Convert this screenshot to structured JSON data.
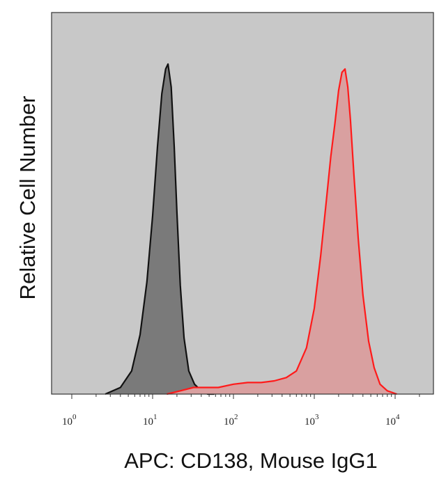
{
  "chart_data": {
    "type": "area",
    "title": "",
    "xlabel": "APC: CD138, Mouse IgG1",
    "ylabel": "Relative Cell Number",
    "x_scale": "log",
    "xlim": [
      1,
      30000
    ],
    "ylim": [
      0,
      1.0
    ],
    "grid": false,
    "legend": "none",
    "background": "#c8c8c8",
    "x_ticks": [
      {
        "base": "10",
        "exp": "0",
        "value": 1
      },
      {
        "base": "10",
        "exp": "1",
        "value": 10
      },
      {
        "base": "10",
        "exp": "2",
        "value": 100
      },
      {
        "base": "10",
        "exp": "3",
        "value": 1000
      },
      {
        "base": "10",
        "exp": "4",
        "value": 10000
      }
    ],
    "series": [
      {
        "color": "#111111",
        "fill": "#7a7a7a",
        "x": [
          2.6,
          4.0,
          5.5,
          7.0,
          8.5,
          10.0,
          11.5,
          13.0,
          14.5,
          15.5,
          17.0,
          18.5,
          20.0,
          22.0,
          24.5,
          28.0,
          33.0,
          40.0,
          48.0,
          58.0
        ],
        "y": [
          0.0,
          0.02,
          0.07,
          0.18,
          0.34,
          0.54,
          0.75,
          0.91,
          0.985,
          1.0,
          0.93,
          0.75,
          0.55,
          0.33,
          0.17,
          0.07,
          0.03,
          0.01,
          0.0,
          0.0
        ]
      },
      {
        "color": "#ff1a1a",
        "fill": "#d9a0a0",
        "x": [
          15,
          22,
          32,
          45,
          65,
          100,
          150,
          220,
          320,
          450,
          600,
          800,
          1000,
          1200,
          1400,
          1600,
          1800,
          2000,
          2200,
          2400,
          2600,
          2800,
          3100,
          3500,
          4000,
          4700,
          5500,
          6500,
          8000,
          10500
        ],
        "y": [
          0.0,
          0.01,
          0.02,
          0.02,
          0.02,
          0.03,
          0.035,
          0.035,
          0.04,
          0.05,
          0.07,
          0.14,
          0.26,
          0.42,
          0.58,
          0.72,
          0.82,
          0.92,
          0.975,
          0.985,
          0.93,
          0.83,
          0.66,
          0.47,
          0.3,
          0.16,
          0.08,
          0.03,
          0.01,
          0.0
        ]
      }
    ]
  }
}
